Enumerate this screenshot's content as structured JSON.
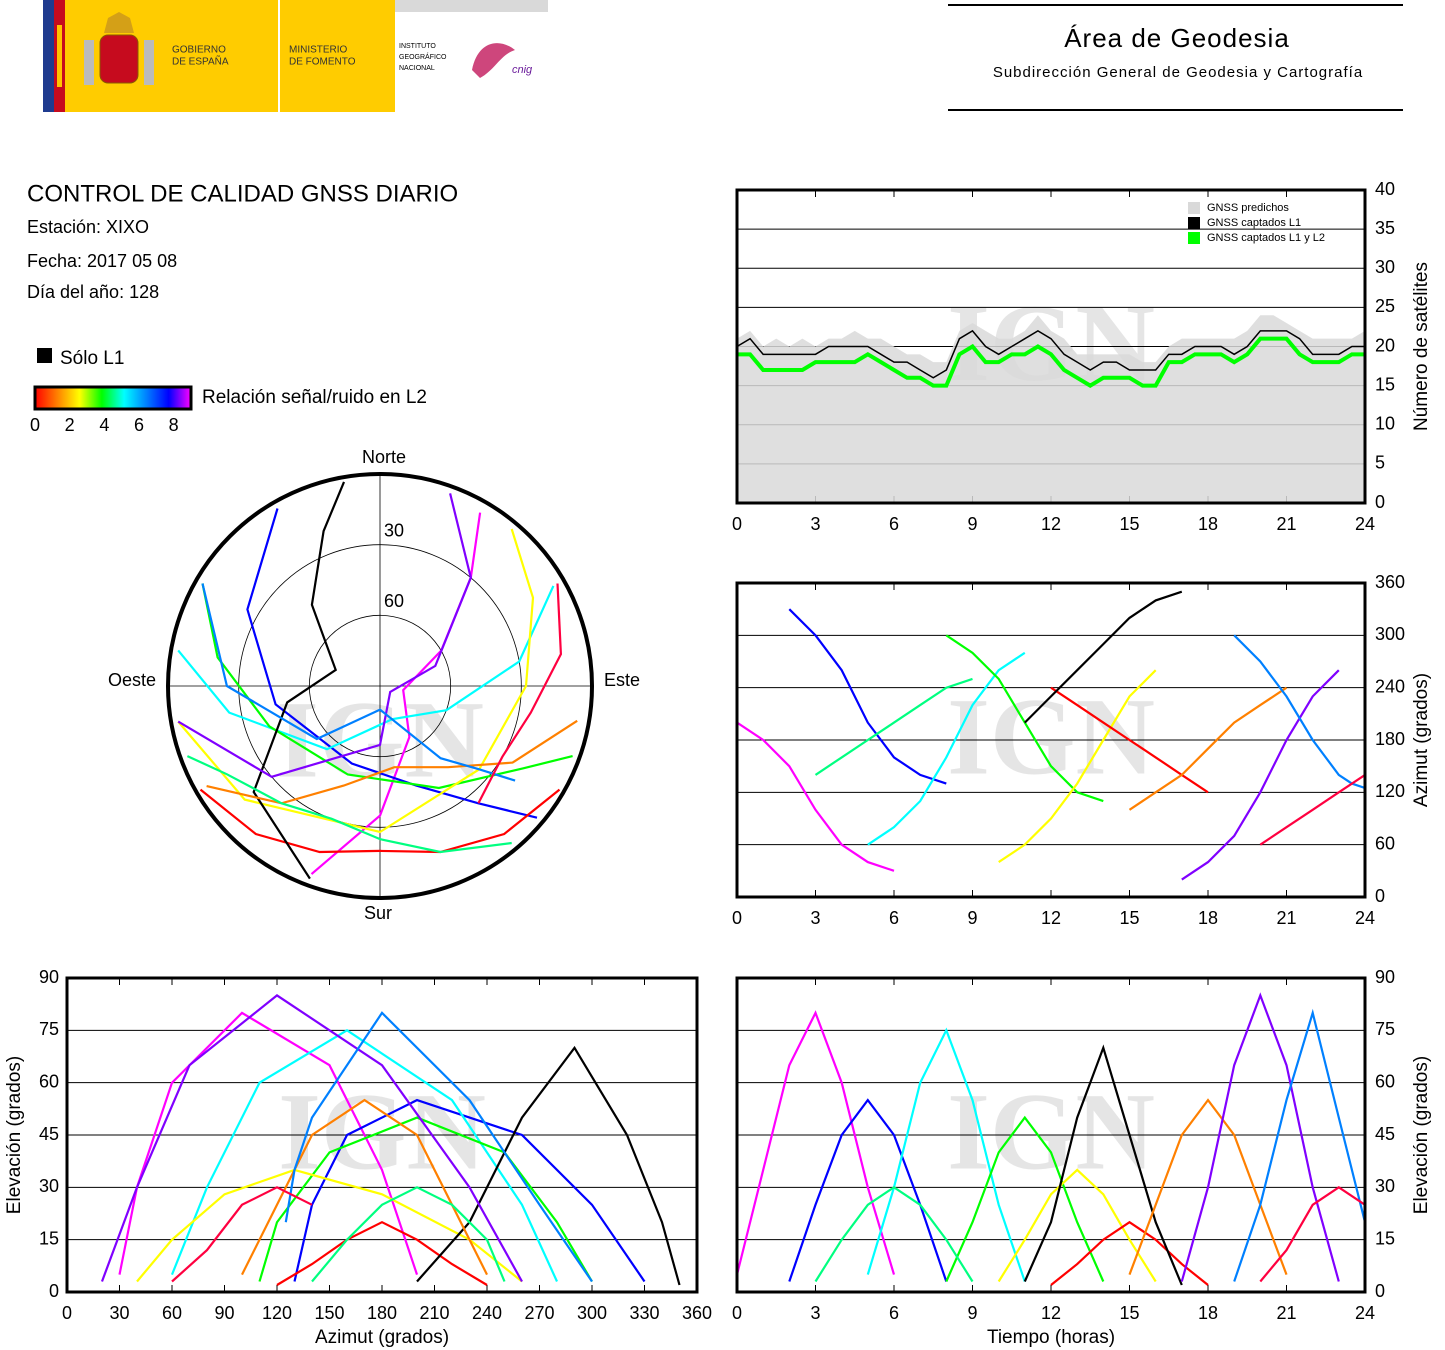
{
  "header": {
    "gobierno": [
      "GOBIERNO",
      "DE ESPAÑA"
    ],
    "ministerio": [
      "MINISTERIO",
      "DE FOMENTO"
    ],
    "ign": [
      "INSTITUTO",
      "GEOGRÁFICO",
      "NACIONAL"
    ],
    "cnig": "cnig",
    "area": "Área de Geodesia",
    "subarea": "Subdirección General de Geodesia y Cartografía"
  },
  "report": {
    "title": "CONTROL DE CALIDAD GNSS DIARIO",
    "lines": [
      "Estación: XIXO",
      "Fecha: 2017 05 08",
      "Día del año: 128"
    ],
    "l1_only": "Sólo L1",
    "snr_label": "Relación señal/ruido en L2",
    "snr_lim": [
      0,
      9
    ],
    "snr_ticks": [
      0,
      2,
      4,
      6,
      8
    ],
    "snr_colors": [
      "#ff0000",
      "#ff8000",
      "#ffff00",
      "#00ff00",
      "#00ffff",
      "#0080ff",
      "#0000ff",
      "#ff00ff"
    ]
  },
  "chart_data": [
    {
      "type": "line",
      "ylabel": "Número de satélites",
      "watermark": "IGN",
      "grid": true,
      "legend": "upper right",
      "xlim": [
        0,
        24
      ],
      "xticks": [
        0,
        3,
        6,
        9,
        12,
        15,
        18,
        21,
        24
      ],
      "ylim": [
        0,
        40
      ],
      "yticks": [
        0,
        5,
        10,
        15,
        20,
        25,
        30,
        35,
        40
      ],
      "x": [
        0,
        0.5,
        1,
        1.5,
        2,
        2.5,
        3,
        3.5,
        4,
        4.5,
        5,
        5.5,
        6,
        6.5,
        7,
        7.5,
        8,
        8.5,
        9,
        9.5,
        10,
        10.5,
        11,
        11.5,
        12,
        12.5,
        13,
        13.5,
        14,
        14.5,
        15,
        15.5,
        16,
        16.5,
        17,
        17.5,
        18,
        18.5,
        19,
        19.5,
        20,
        20.5,
        21,
        21.5,
        22,
        22.5,
        23,
        23.5,
        24
      ],
      "series": [
        {
          "name": "GNSS predichos",
          "color": "#d9d9d9",
          "fill": true,
          "values": [
            21,
            22,
            20,
            21,
            20,
            21,
            20,
            21,
            21,
            22,
            21,
            21,
            20,
            19,
            19,
            18,
            18,
            22,
            23,
            22,
            21,
            21,
            22,
            24,
            22,
            21,
            19,
            19,
            19,
            19,
            19,
            18,
            18,
            20,
            21,
            21,
            21,
            21,
            21,
            22,
            24,
            24,
            23,
            22,
            21,
            21,
            21,
            21,
            22
          ]
        },
        {
          "name": "GNSS captados L1",
          "color": "#000000",
          "fill": false,
          "values": [
            20,
            21,
            19,
            19,
            19,
            19,
            19,
            20,
            20,
            20,
            20,
            19,
            18,
            18,
            17,
            16,
            17,
            21,
            22,
            20,
            19,
            20,
            21,
            22,
            21,
            19,
            18,
            17,
            18,
            18,
            17,
            17,
            17,
            19,
            19,
            20,
            20,
            20,
            19,
            20,
            22,
            22,
            22,
            21,
            19,
            19,
            19,
            20,
            20
          ]
        },
        {
          "name": "GNSS captados L1 y L2",
          "color": "#00ff00",
          "fill": false,
          "values": [
            19,
            19,
            17,
            17,
            17,
            17,
            18,
            18,
            18,
            18,
            19,
            18,
            17,
            16,
            16,
            15,
            15,
            19,
            20,
            18,
            18,
            19,
            19,
            20,
            19,
            17,
            16,
            15,
            16,
            16,
            16,
            15,
            15,
            18,
            18,
            19,
            19,
            19,
            18,
            19,
            21,
            21,
            21,
            19,
            18,
            18,
            18,
            19,
            19
          ]
        }
      ]
    },
    {
      "type": "polar",
      "watermark": "IGN",
      "rlim": [
        90,
        0
      ],
      "rticks": [
        30,
        60
      ],
      "directions": {
        "north": "Norte",
        "east": "Este",
        "south": "Sur",
        "west": "Oeste"
      },
      "series": [
        {
          "color": "#ff00ff",
          "x": [
            0,
            1,
            2,
            3,
            4,
            5,
            6
          ],
          "azimuth": [
            200,
            180,
            150,
            100,
            60,
            40,
            30
          ],
          "elevation": [
            5,
            35,
            65,
            80,
            60,
            30,
            5
          ]
        },
        {
          "color": "#0000ff",
          "x": [
            2,
            3,
            4,
            5,
            6,
            7,
            8
          ],
          "azimuth": [
            330,
            300,
            260,
            200,
            160,
            140,
            130
          ],
          "elevation": [
            3,
            25,
            45,
            55,
            45,
            25,
            3
          ]
        },
        {
          "color": "#00ffff",
          "x": [
            5,
            6,
            7,
            8,
            9,
            10,
            11
          ],
          "azimuth": [
            60,
            80,
            110,
            160,
            220,
            260,
            280
          ],
          "elevation": [
            5,
            30,
            60,
            75,
            55,
            25,
            3
          ]
        },
        {
          "color": "#00ff00",
          "x": [
            8,
            9,
            10,
            11,
            12,
            13,
            14
          ],
          "azimuth": [
            300,
            280,
            250,
            200,
            150,
            120,
            110
          ],
          "elevation": [
            3,
            20,
            40,
            50,
            40,
            20,
            3
          ]
        },
        {
          "color": "#ffff00",
          "x": [
            10,
            11,
            12,
            13,
            14,
            15,
            16
          ],
          "azimuth": [
            40,
            60,
            90,
            130,
            180,
            230,
            260
          ],
          "elevation": [
            3,
            15,
            28,
            35,
            28,
            15,
            3
          ]
        },
        {
          "color": "#ff0000",
          "x": [
            12,
            13,
            14,
            15,
            16,
            17,
            18
          ],
          "azimuth": [
            240,
            220,
            200,
            180,
            160,
            140,
            120
          ],
          "elevation": [
            2,
            8,
            15,
            20,
            15,
            8,
            2
          ]
        },
        {
          "color": "#000000",
          "x": [
            11,
            12,
            13,
            14,
            15,
            16,
            17
          ],
          "azimuth": [
            200,
            230,
            260,
            290,
            320,
            340,
            350
          ],
          "elevation": [
            3,
            20,
            50,
            70,
            45,
            20,
            2
          ]
        },
        {
          "color": "#ff8000",
          "x": [
            15,
            16,
            17,
            18,
            19,
            20,
            21
          ],
          "azimuth": [
            100,
            120,
            140,
            170,
            200,
            220,
            240
          ],
          "elevation": [
            5,
            25,
            45,
            55,
            45,
            25,
            5
          ]
        },
        {
          "color": "#8000ff",
          "x": [
            17,
            18,
            19,
            20,
            21,
            22,
            23
          ],
          "azimuth": [
            20,
            40,
            70,
            120,
            180,
            230,
            260
          ],
          "elevation": [
            3,
            30,
            65,
            85,
            65,
            30,
            3
          ]
        },
        {
          "color": "#0080ff",
          "x": [
            19,
            20,
            21,
            22,
            23,
            23.5,
            24
          ],
          "azimuth": [
            300,
            270,
            230,
            180,
            140,
            130,
            125
          ],
          "elevation": [
            3,
            25,
            55,
            80,
            50,
            35,
            20
          ]
        },
        {
          "color": "#00ff80",
          "x": [
            3,
            4,
            5,
            6,
            7,
            8,
            9
          ],
          "azimuth": [
            140,
            160,
            180,
            200,
            220,
            240,
            250
          ],
          "elevation": [
            3,
            15,
            25,
            30,
            25,
            15,
            3
          ]
        },
        {
          "color": "#ff0040",
          "x": [
            20,
            21,
            22,
            23,
            24
          ],
          "azimuth": [
            60,
            80,
            100,
            120,
            140
          ],
          "elevation": [
            3,
            12,
            25,
            30,
            25
          ]
        }
      ]
    },
    {
      "type": "elevation-azimuth",
      "xlabel": "Azimut (grados)",
      "ylabel": "Elevación (grados)",
      "watermark": "IGN",
      "grid": true,
      "xlim": [
        0,
        360
      ],
      "xticks": [
        0,
        30,
        60,
        90,
        120,
        150,
        180,
        210,
        240,
        270,
        300,
        330,
        360
      ],
      "ylim": [
        0,
        90
      ],
      "yticks": [
        0,
        15,
        30,
        45,
        60,
        75,
        90
      ]
    },
    {
      "type": "azimuth-time",
      "ylabel": "Azimut (grados)",
      "watermark": "IGN",
      "grid": true,
      "xlim": [
        0,
        24
      ],
      "xticks": [
        0,
        3,
        6,
        9,
        12,
        15,
        18,
        21,
        24
      ],
      "ylim": [
        0,
        360
      ],
      "yticks": [
        0,
        60,
        120,
        180,
        240,
        300,
        360
      ]
    },
    {
      "type": "elevation-time",
      "xlabel": "Tiempo (horas)",
      "ylabel": "Elevación (grados)",
      "watermark": "IGN",
      "grid": true,
      "xlim": [
        0,
        24
      ],
      "xticks": [
        0,
        3,
        6,
        9,
        12,
        15,
        18,
        21,
        24
      ],
      "ylim": [
        0,
        90
      ],
      "yticks": [
        0,
        15,
        30,
        45,
        60,
        75,
        90
      ]
    }
  ]
}
